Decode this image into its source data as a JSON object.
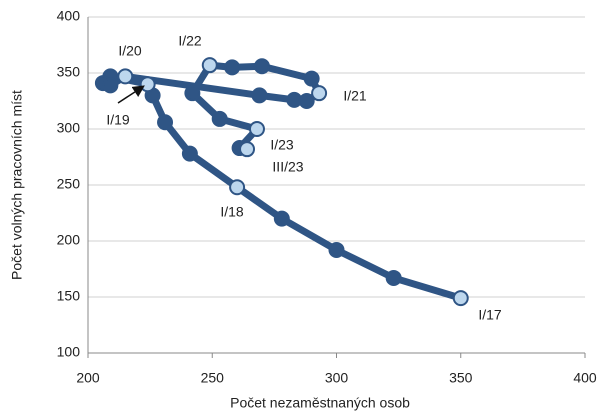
{
  "chart_data": {
    "type": "connected-scatter",
    "x_label": "Počet nezaměstnaných osob",
    "y_label": "Počet volných pracovních míst",
    "x": [
      350,
      323,
      300,
      278,
      260,
      241,
      231,
      226,
      224,
      209,
      206,
      209,
      215,
      269,
      283,
      288,
      293,
      290,
      270,
      258,
      249,
      242,
      253,
      268,
      261,
      264
    ],
    "values": [
      149,
      167,
      192,
      220,
      248,
      278,
      306,
      330,
      340,
      347,
      341,
      339,
      347,
      330,
      326,
      325,
      332,
      345,
      356,
      355,
      357,
      332,
      309,
      300,
      283,
      282
    ],
    "point_labels": [
      "I/17",
      null,
      null,
      null,
      "I/18",
      null,
      null,
      null,
      "I/19",
      null,
      null,
      null,
      "I/20",
      null,
      null,
      null,
      "I/21",
      null,
      null,
      null,
      "I/22",
      null,
      null,
      "I/23",
      null,
      "III/23"
    ],
    "color": "#2f5585",
    "highlight_color": "#bdd7ee",
    "xlim": [
      200,
      400
    ],
    "xticks": [
      200,
      250,
      300,
      350,
      400
    ],
    "ylim": [
      100,
      400
    ],
    "yticks": [
      100,
      150,
      200,
      250,
      300,
      350,
      400
    ],
    "grid": true
  }
}
